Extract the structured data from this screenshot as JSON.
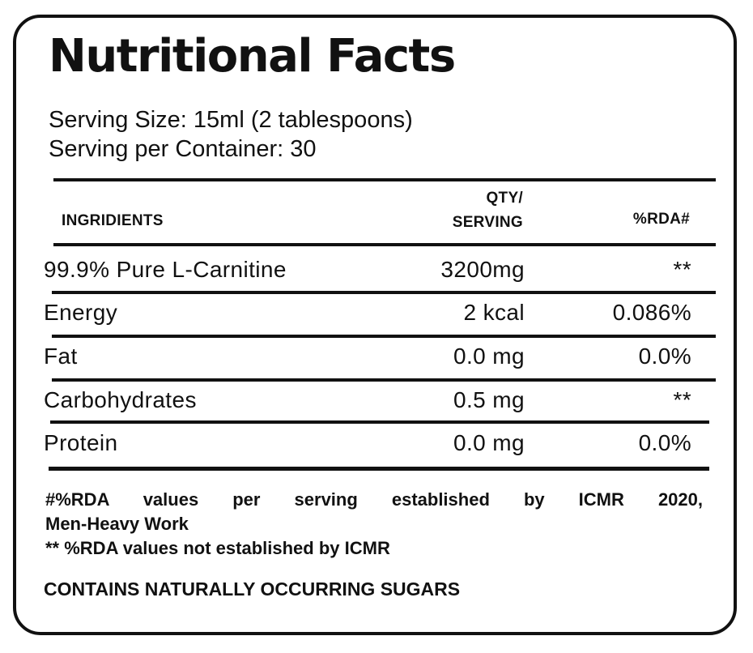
{
  "title": "Nutritional Facts",
  "serving_size": "Serving Size: 15ml (2 tablespoons)",
  "servings_per_container": "Serving per Container: 30",
  "table": {
    "headers": {
      "ingredient": "INGRIDIENTS",
      "qty_line1": "QTY/",
      "qty_line2": "SERVING",
      "rda": "%RDA#"
    },
    "rows": [
      {
        "name": "99.9% Pure L-Carnitine",
        "qty": "3200mg",
        "rda": "**"
      },
      {
        "name": "Energy",
        "qty": "2 kcal",
        "rda": "0.086%"
      },
      {
        "name": "Fat",
        "qty": "0.0 mg",
        "rda": "0.0%"
      },
      {
        "name": "Carbohydrates",
        "qty": "0.5 mg",
        "rda": "**"
      },
      {
        "name": "Protein",
        "qty": "0.0 mg",
        "rda": "0.0%"
      }
    ]
  },
  "footnotes": {
    "rda_note_line1": "#%RDA values per serving established by ICMR 2020,",
    "rda_note_line2": "Men-Heavy Work",
    "not_established": "** %RDA values not established by ICMR",
    "sugars": "CONTAINS NATURALLY OCCURRING SUGARS"
  }
}
